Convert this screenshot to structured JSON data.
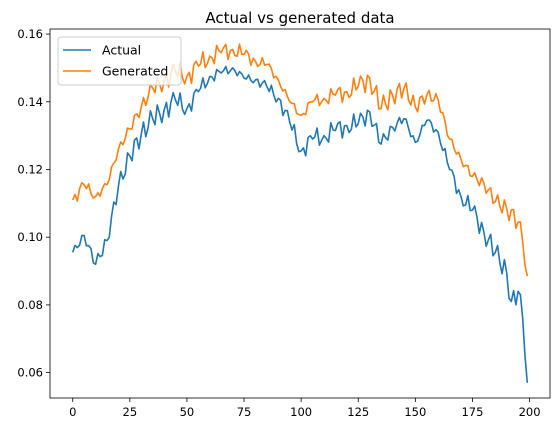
{
  "chart_data": {
    "type": "line",
    "title": "Actual vs generated data",
    "xlabel": "",
    "ylabel": "",
    "xlim": [
      -9.95,
      208.95
    ],
    "ylim": [
      0.0525,
      0.1615
    ],
    "x_ticks": [
      0,
      25,
      50,
      75,
      100,
      125,
      150,
      175,
      200
    ],
    "y_ticks": [
      0.06,
      0.08,
      0.1,
      0.12,
      0.14,
      0.16
    ],
    "y_tick_labels": [
      "0.06",
      "0.08",
      "0.10",
      "0.12",
      "0.14",
      "0.16"
    ],
    "grid": false,
    "legend": "top-left",
    "series": [
      {
        "name": "Actual",
        "color": "#1f77b4",
        "x": [
          0,
          5,
          10,
          15,
          20,
          25,
          30,
          35,
          40,
          45,
          50,
          55,
          60,
          65,
          70,
          75,
          80,
          85,
          90,
          95,
          100,
          105,
          110,
          115,
          120,
          125,
          130,
          135,
          140,
          145,
          150,
          155,
          160,
          165,
          170,
          175,
          180,
          185,
          190,
          192,
          195,
          197,
          199
        ],
        "y": [
          0.0955,
          0.1005,
          0.092,
          0.099,
          0.115,
          0.124,
          0.1305,
          0.135,
          0.1375,
          0.1405,
          0.138,
          0.143,
          0.1475,
          0.1485,
          0.15,
          0.147,
          0.1465,
          0.1445,
          0.141,
          0.134,
          0.1255,
          0.129,
          0.13,
          0.1315,
          0.133,
          0.1335,
          0.137,
          0.1275,
          0.1325,
          0.135,
          0.128,
          0.1345,
          0.131,
          0.12,
          0.112,
          0.108,
          0.1015,
          0.0955,
          0.0895,
          0.081,
          0.084,
          0.076,
          0.057
        ]
      },
      {
        "name": "Generated",
        "color": "#ff7f0e",
        "x": [
          0,
          5,
          10,
          15,
          20,
          25,
          30,
          35,
          40,
          45,
          50,
          55,
          60,
          65,
          70,
          75,
          80,
          85,
          90,
          95,
          100,
          105,
          110,
          115,
          120,
          125,
          130,
          135,
          140,
          145,
          150,
          155,
          160,
          165,
          170,
          175,
          180,
          185,
          190,
          195,
          197,
          199
        ],
        "y": [
          0.111,
          0.1155,
          0.112,
          0.1155,
          0.126,
          0.132,
          0.1385,
          0.144,
          0.146,
          0.149,
          0.1475,
          0.1505,
          0.1535,
          0.1545,
          0.1555,
          0.154,
          0.152,
          0.151,
          0.1465,
          0.14,
          0.136,
          0.14,
          0.141,
          0.142,
          0.143,
          0.1445,
          0.147,
          0.138,
          0.142,
          0.144,
          0.1385,
          0.142,
          0.1405,
          0.129,
          0.123,
          0.118,
          0.116,
          0.1105,
          0.1085,
          0.1045,
          0.0985,
          0.0885
        ]
      }
    ]
  }
}
